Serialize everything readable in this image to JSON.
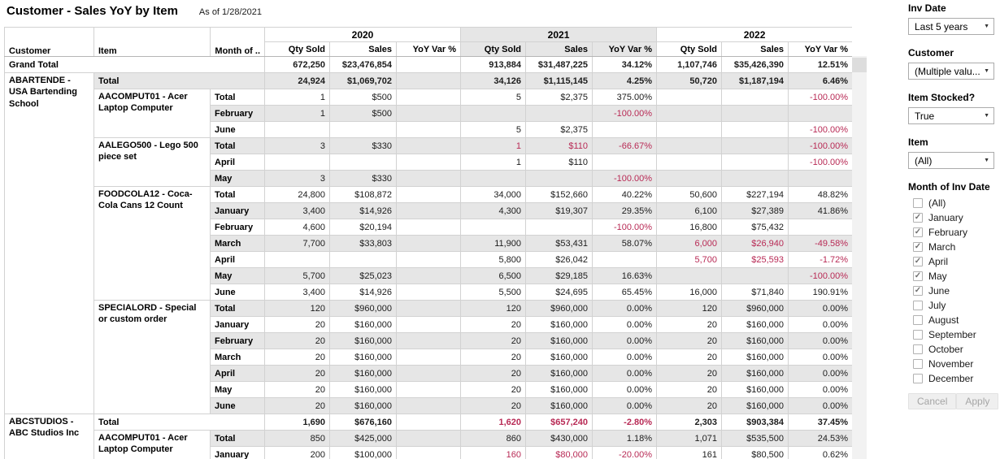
{
  "report": {
    "title": "Customer - Sales YoY by Item",
    "as_of": "As of 1/28/2021"
  },
  "colors": {
    "negative": "#b82a55",
    "band": "#e6e6e6",
    "header_highlight": "#e6e6e6"
  },
  "table": {
    "row_headers": [
      "Customer",
      "Item",
      "Month of .."
    ],
    "measure_headers": [
      "Qty Sold",
      "Sales",
      "YoY Var %"
    ],
    "year_groups": [
      {
        "year": "2020",
        "highlight": false
      },
      {
        "year": "2021",
        "highlight": true
      },
      {
        "year": "2022",
        "highlight": false
      }
    ],
    "rows": [
      {
        "type": "grand",
        "label": "Grand Total",
        "cells": [
          {
            "v": "672,250"
          },
          {
            "v": "$23,476,854"
          },
          {
            "v": ""
          },
          {
            "v": "913,884"
          },
          {
            "v": "$31,487,225"
          },
          {
            "v": "34.12%"
          },
          {
            "v": "1,107,746"
          },
          {
            "v": "$35,426,390"
          },
          {
            "v": "12.51%"
          }
        ]
      },
      {
        "type": "customer-total",
        "customer": "ABARTENDE - USA Bartending School",
        "customer_rowspan": 21,
        "label": "Total",
        "cells": [
          {
            "v": "24,924"
          },
          {
            "v": "$1,069,702"
          },
          {
            "v": ""
          },
          {
            "v": "34,126"
          },
          {
            "v": "$1,115,145"
          },
          {
            "v": "4.25%"
          },
          {
            "v": "50,720"
          },
          {
            "v": "$1,187,194"
          },
          {
            "v": "6.46%"
          }
        ]
      },
      {
        "type": "item-total",
        "item": "AACOMPUT01 - Acer Laptop Computer",
        "item_rowspan": 3,
        "label": "Total",
        "cells": [
          {
            "v": "1"
          },
          {
            "v": "$500"
          },
          {
            "v": ""
          },
          {
            "v": "5"
          },
          {
            "v": "$2,375"
          },
          {
            "v": "375.00%"
          },
          {
            "v": ""
          },
          {
            "v": ""
          },
          {
            "v": "-100.00%",
            "neg": true
          }
        ]
      },
      {
        "type": "month",
        "label": "February",
        "cells": [
          {
            "v": "1"
          },
          {
            "v": "$500"
          },
          {
            "v": ""
          },
          {
            "v": ""
          },
          {
            "v": ""
          },
          {
            "v": "-100.00%",
            "neg": true
          },
          {
            "v": ""
          },
          {
            "v": ""
          },
          {
            "v": ""
          }
        ]
      },
      {
        "type": "month",
        "label": "June",
        "cells": [
          {
            "v": ""
          },
          {
            "v": ""
          },
          {
            "v": ""
          },
          {
            "v": "5"
          },
          {
            "v": "$2,375"
          },
          {
            "v": ""
          },
          {
            "v": ""
          },
          {
            "v": ""
          },
          {
            "v": "-100.00%",
            "neg": true
          }
        ]
      },
      {
        "type": "item-total",
        "item": "AALEGO500 - Lego 500 piece set",
        "item_rowspan": 3,
        "label": "Total",
        "cells": [
          {
            "v": "3"
          },
          {
            "v": "$330"
          },
          {
            "v": ""
          },
          {
            "v": "1",
            "neg": true
          },
          {
            "v": "$110",
            "neg": true
          },
          {
            "v": "-66.67%",
            "neg": true
          },
          {
            "v": ""
          },
          {
            "v": ""
          },
          {
            "v": "-100.00%",
            "neg": true
          }
        ]
      },
      {
        "type": "month",
        "label": "April",
        "cells": [
          {
            "v": ""
          },
          {
            "v": ""
          },
          {
            "v": ""
          },
          {
            "v": "1"
          },
          {
            "v": "$110"
          },
          {
            "v": ""
          },
          {
            "v": ""
          },
          {
            "v": ""
          },
          {
            "v": "-100.00%",
            "neg": true
          }
        ]
      },
      {
        "type": "month",
        "label": "May",
        "cells": [
          {
            "v": "3"
          },
          {
            "v": "$330"
          },
          {
            "v": ""
          },
          {
            "v": ""
          },
          {
            "v": ""
          },
          {
            "v": "-100.00%",
            "neg": true
          },
          {
            "v": ""
          },
          {
            "v": ""
          },
          {
            "v": ""
          }
        ]
      },
      {
        "type": "item-total",
        "item": "FOODCOLA12 - Coca-Cola Cans 12 Count",
        "item_rowspan": 7,
        "label": "Total",
        "cells": [
          {
            "v": "24,800"
          },
          {
            "v": "$108,872"
          },
          {
            "v": ""
          },
          {
            "v": "34,000"
          },
          {
            "v": "$152,660"
          },
          {
            "v": "40.22%"
          },
          {
            "v": "50,600"
          },
          {
            "v": "$227,194"
          },
          {
            "v": "48.82%"
          }
        ]
      },
      {
        "type": "month",
        "label": "January",
        "cells": [
          {
            "v": "3,400"
          },
          {
            "v": "$14,926"
          },
          {
            "v": ""
          },
          {
            "v": "4,300"
          },
          {
            "v": "$19,307"
          },
          {
            "v": "29.35%"
          },
          {
            "v": "6,100"
          },
          {
            "v": "$27,389"
          },
          {
            "v": "41.86%"
          }
        ]
      },
      {
        "type": "month",
        "label": "February",
        "cells": [
          {
            "v": "4,600"
          },
          {
            "v": "$20,194"
          },
          {
            "v": ""
          },
          {
            "v": ""
          },
          {
            "v": ""
          },
          {
            "v": "-100.00%",
            "neg": true
          },
          {
            "v": "16,800"
          },
          {
            "v": "$75,432"
          },
          {
            "v": ""
          }
        ]
      },
      {
        "type": "month",
        "label": "March",
        "cells": [
          {
            "v": "7,700"
          },
          {
            "v": "$33,803"
          },
          {
            "v": ""
          },
          {
            "v": "11,900"
          },
          {
            "v": "$53,431"
          },
          {
            "v": "58.07%"
          },
          {
            "v": "6,000",
            "neg": true
          },
          {
            "v": "$26,940",
            "neg": true
          },
          {
            "v": "-49.58%",
            "neg": true
          }
        ]
      },
      {
        "type": "month",
        "label": "April",
        "cells": [
          {
            "v": ""
          },
          {
            "v": ""
          },
          {
            "v": ""
          },
          {
            "v": "5,800"
          },
          {
            "v": "$26,042"
          },
          {
            "v": ""
          },
          {
            "v": "5,700",
            "neg": true
          },
          {
            "v": "$25,593",
            "neg": true
          },
          {
            "v": "-1.72%",
            "neg": true
          }
        ]
      },
      {
        "type": "month",
        "label": "May",
        "cells": [
          {
            "v": "5,700"
          },
          {
            "v": "$25,023"
          },
          {
            "v": ""
          },
          {
            "v": "6,500"
          },
          {
            "v": "$29,185"
          },
          {
            "v": "16.63%"
          },
          {
            "v": ""
          },
          {
            "v": ""
          },
          {
            "v": "-100.00%",
            "neg": true
          }
        ]
      },
      {
        "type": "month",
        "label": "June",
        "cells": [
          {
            "v": "3,400"
          },
          {
            "v": "$14,926"
          },
          {
            "v": ""
          },
          {
            "v": "5,500"
          },
          {
            "v": "$24,695"
          },
          {
            "v": "65.45%"
          },
          {
            "v": "16,000"
          },
          {
            "v": "$71,840"
          },
          {
            "v": "190.91%"
          }
        ]
      },
      {
        "type": "item-total",
        "item": "SPECIALORD - Special or custom order",
        "item_rowspan": 7,
        "label": "Total",
        "cells": [
          {
            "v": "120"
          },
          {
            "v": "$960,000"
          },
          {
            "v": ""
          },
          {
            "v": "120"
          },
          {
            "v": "$960,000"
          },
          {
            "v": "0.00%"
          },
          {
            "v": "120"
          },
          {
            "v": "$960,000"
          },
          {
            "v": "0.00%"
          }
        ]
      },
      {
        "type": "month",
        "label": "January",
        "cells": [
          {
            "v": "20"
          },
          {
            "v": "$160,000"
          },
          {
            "v": ""
          },
          {
            "v": "20"
          },
          {
            "v": "$160,000"
          },
          {
            "v": "0.00%"
          },
          {
            "v": "20"
          },
          {
            "v": "$160,000"
          },
          {
            "v": "0.00%"
          }
        ]
      },
      {
        "type": "month",
        "label": "February",
        "cells": [
          {
            "v": "20"
          },
          {
            "v": "$160,000"
          },
          {
            "v": ""
          },
          {
            "v": "20"
          },
          {
            "v": "$160,000"
          },
          {
            "v": "0.00%"
          },
          {
            "v": "20"
          },
          {
            "v": "$160,000"
          },
          {
            "v": "0.00%"
          }
        ]
      },
      {
        "type": "month",
        "label": "March",
        "cells": [
          {
            "v": "20"
          },
          {
            "v": "$160,000"
          },
          {
            "v": ""
          },
          {
            "v": "20"
          },
          {
            "v": "$160,000"
          },
          {
            "v": "0.00%"
          },
          {
            "v": "20"
          },
          {
            "v": "$160,000"
          },
          {
            "v": "0.00%"
          }
        ]
      },
      {
        "type": "month",
        "label": "April",
        "cells": [
          {
            "v": "20"
          },
          {
            "v": "$160,000"
          },
          {
            "v": ""
          },
          {
            "v": "20"
          },
          {
            "v": "$160,000"
          },
          {
            "v": "0.00%"
          },
          {
            "v": "20"
          },
          {
            "v": "$160,000"
          },
          {
            "v": "0.00%"
          }
        ]
      },
      {
        "type": "month",
        "label": "May",
        "cells": [
          {
            "v": "20"
          },
          {
            "v": "$160,000"
          },
          {
            "v": ""
          },
          {
            "v": "20"
          },
          {
            "v": "$160,000"
          },
          {
            "v": "0.00%"
          },
          {
            "v": "20"
          },
          {
            "v": "$160,000"
          },
          {
            "v": "0.00%"
          }
        ]
      },
      {
        "type": "month",
        "label": "June",
        "cells": [
          {
            "v": "20"
          },
          {
            "v": "$160,000"
          },
          {
            "v": ""
          },
          {
            "v": "20"
          },
          {
            "v": "$160,000"
          },
          {
            "v": "0.00%"
          },
          {
            "v": "20"
          },
          {
            "v": "$160,000"
          },
          {
            "v": "0.00%"
          }
        ]
      },
      {
        "type": "customer-total",
        "customer": "ABCSTUDIOS - ABC Studios Inc",
        "customer_rowspan": 3,
        "label": "Total",
        "cells": [
          {
            "v": "1,690"
          },
          {
            "v": "$676,160"
          },
          {
            "v": ""
          },
          {
            "v": "1,620",
            "neg": true
          },
          {
            "v": "$657,240",
            "neg": true
          },
          {
            "v": "-2.80%",
            "neg": true
          },
          {
            "v": "2,303"
          },
          {
            "v": "$903,384"
          },
          {
            "v": "37.45%"
          }
        ]
      },
      {
        "type": "item-total",
        "item": "AACOMPUT01 - Acer Laptop Computer",
        "item_rowspan": 2,
        "label": "Total",
        "cells": [
          {
            "v": "850"
          },
          {
            "v": "$425,000"
          },
          {
            "v": ""
          },
          {
            "v": "860"
          },
          {
            "v": "$430,000"
          },
          {
            "v": "1.18%"
          },
          {
            "v": "1,071"
          },
          {
            "v": "$535,500"
          },
          {
            "v": "24.53%"
          }
        ]
      },
      {
        "type": "month",
        "label": "January",
        "cells": [
          {
            "v": "200"
          },
          {
            "v": "$100,000"
          },
          {
            "v": ""
          },
          {
            "v": "160",
            "neg": true
          },
          {
            "v": "$80,000",
            "neg": true
          },
          {
            "v": "-20.00%",
            "neg": true
          },
          {
            "v": "161"
          },
          {
            "v": "$80,500"
          },
          {
            "v": "0.62%"
          }
        ]
      }
    ]
  },
  "filters": {
    "inv_date": {
      "label": "Inv Date",
      "value": "Last 5 years"
    },
    "customer": {
      "label": "Customer",
      "value": "(Multiple valu..."
    },
    "item_stocked": {
      "label": "Item Stocked?",
      "value": "True"
    },
    "item": {
      "label": "Item",
      "value": "(All)"
    },
    "month": {
      "label": "Month of Inv Date",
      "options": [
        {
          "label": "(All)",
          "checked": false
        },
        {
          "label": "January",
          "checked": true
        },
        {
          "label": "February",
          "checked": true
        },
        {
          "label": "March",
          "checked": true
        },
        {
          "label": "April",
          "checked": true
        },
        {
          "label": "May",
          "checked": true
        },
        {
          "label": "June",
          "checked": true
        },
        {
          "label": "July",
          "checked": false
        },
        {
          "label": "August",
          "checked": false
        },
        {
          "label": "September",
          "checked": false
        },
        {
          "label": "October",
          "checked": false
        },
        {
          "label": "November",
          "checked": false
        },
        {
          "label": "December",
          "checked": false
        }
      ]
    },
    "cancel_label": "Cancel",
    "apply_label": "Apply"
  }
}
